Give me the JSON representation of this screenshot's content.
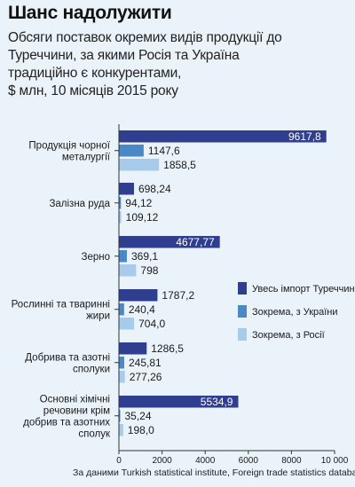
{
  "header": {
    "title": "Шанс надолужити",
    "subtitle_lines": [
      "Обсяги поставок окремих видів продукції до",
      "Туреччини, за якими Росія та Україна",
      "традиційно є конкурентами,",
      "$ млн, 10 місяців 2015 року"
    ]
  },
  "source": "За даними Turkish statistical institute, Foreign trade statistics database",
  "colors": {
    "background": "#eaf3fa",
    "total": "#2f3e8f",
    "ukraine": "#4a88c7",
    "russia": "#a9cbeb",
    "grid": "#9aa9b6"
  },
  "chart_data": {
    "type": "bar",
    "orientation": "horizontal",
    "categories": [
      [
        "Продукція чорної",
        "металургії"
      ],
      [
        "Залізна руда"
      ],
      [
        "Зерно"
      ],
      [
        "Рослинні та тваринні",
        "жири"
      ],
      [
        "Добрива та азотні",
        "сполуки"
      ],
      [
        "Основні хімічні",
        "речовини крім",
        "добрив та азотних",
        "сполук"
      ]
    ],
    "series": [
      {
        "name": "Увесь імпорт Туреччини",
        "values": [
          9617.8,
          698.24,
          4677.77,
          1787.2,
          1286.5,
          5534.9
        ],
        "labels": [
          "9617,8",
          "698,24",
          "4677,77",
          "1787,2",
          "1286,5",
          "5534,9"
        ]
      },
      {
        "name": "Зокрема, з України",
        "values": [
          1147.6,
          94.12,
          369.1,
          240.4,
          245.81,
          35.24
        ],
        "labels": [
          "1147,6",
          "94,12",
          "369,1",
          "240,4",
          "245,81",
          "35,24"
        ]
      },
      {
        "name": "Зокрема, з Росії",
        "values": [
          1858.5,
          109.12,
          798,
          704.0,
          277.26,
          198.0
        ],
        "labels": [
          "1858,5",
          "109,12",
          "798",
          "704,0",
          "277,26",
          "198,0"
        ]
      }
    ],
    "xlim": [
      0,
      10000
    ],
    "xticks": [
      0,
      2000,
      4000,
      6000,
      8000,
      10000
    ],
    "xtick_labels": [
      "0",
      "2000",
      "4000",
      "6000",
      "8000",
      "10 000"
    ],
    "legend_position": "right-middle",
    "grid": false
  }
}
